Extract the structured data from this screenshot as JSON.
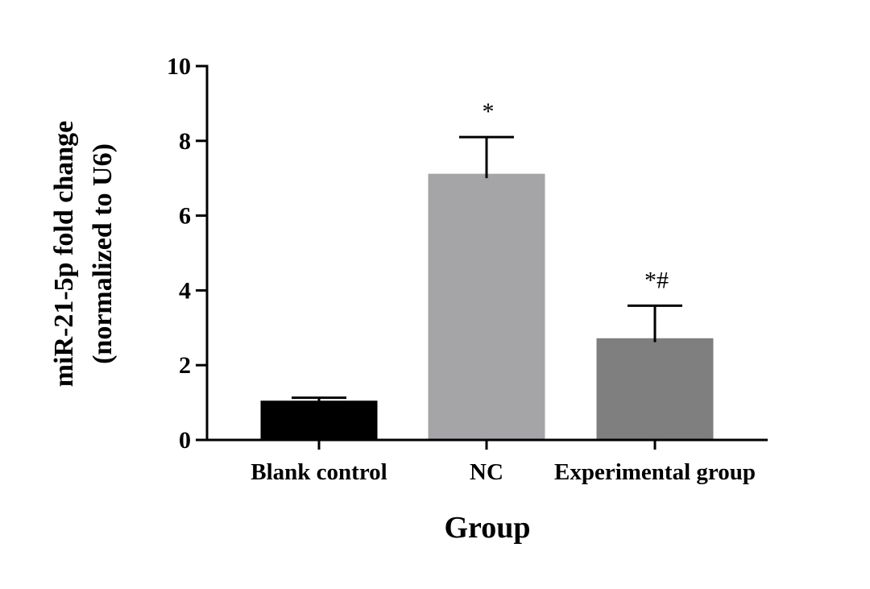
{
  "chart_data": {
    "type": "bar",
    "xlabel": "Group",
    "ylabel_lines": [
      "miR-21-5p fold change",
      "(normalized to U6)"
    ],
    "ylim": [
      0,
      10
    ],
    "yticks": [
      0,
      2,
      4,
      6,
      8,
      10
    ],
    "categories": [
      "Blank control",
      "NC",
      "Experimental group"
    ],
    "values": [
      1.05,
      7.12,
      2.72
    ],
    "errors": [
      0.08,
      0.98,
      0.87
    ],
    "annotations": [
      "",
      "*",
      "*#"
    ],
    "colors": [
      "#000000",
      "#a5a5a8",
      "#7f7f7f"
    ],
    "grid": false,
    "legend": "none"
  }
}
